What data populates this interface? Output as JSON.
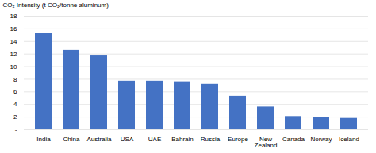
{
  "chart_data": {
    "type": "bar",
    "categories": [
      "India",
      "China",
      "Australia",
      "USA",
      "UAE",
      "Bahrain",
      "Russia",
      "Europe",
      "New\nZealand",
      "Canada",
      "Norway",
      "Iceland"
    ],
    "values": [
      15.3,
      12.6,
      11.7,
      7.7,
      7.7,
      7.6,
      7.2,
      5.3,
      3.6,
      2.1,
      1.9,
      1.8
    ],
    "color": "#4472C4",
    "ylabel": "CO₂ Intensity (t CO₂/tonne aluminum)",
    "ylim": [
      0,
      18
    ],
    "yticks": [
      {
        "value": 0,
        "label": "-"
      },
      2,
      4,
      6,
      8,
      10,
      12,
      14,
      16,
      18
    ],
    "grid": true
  }
}
